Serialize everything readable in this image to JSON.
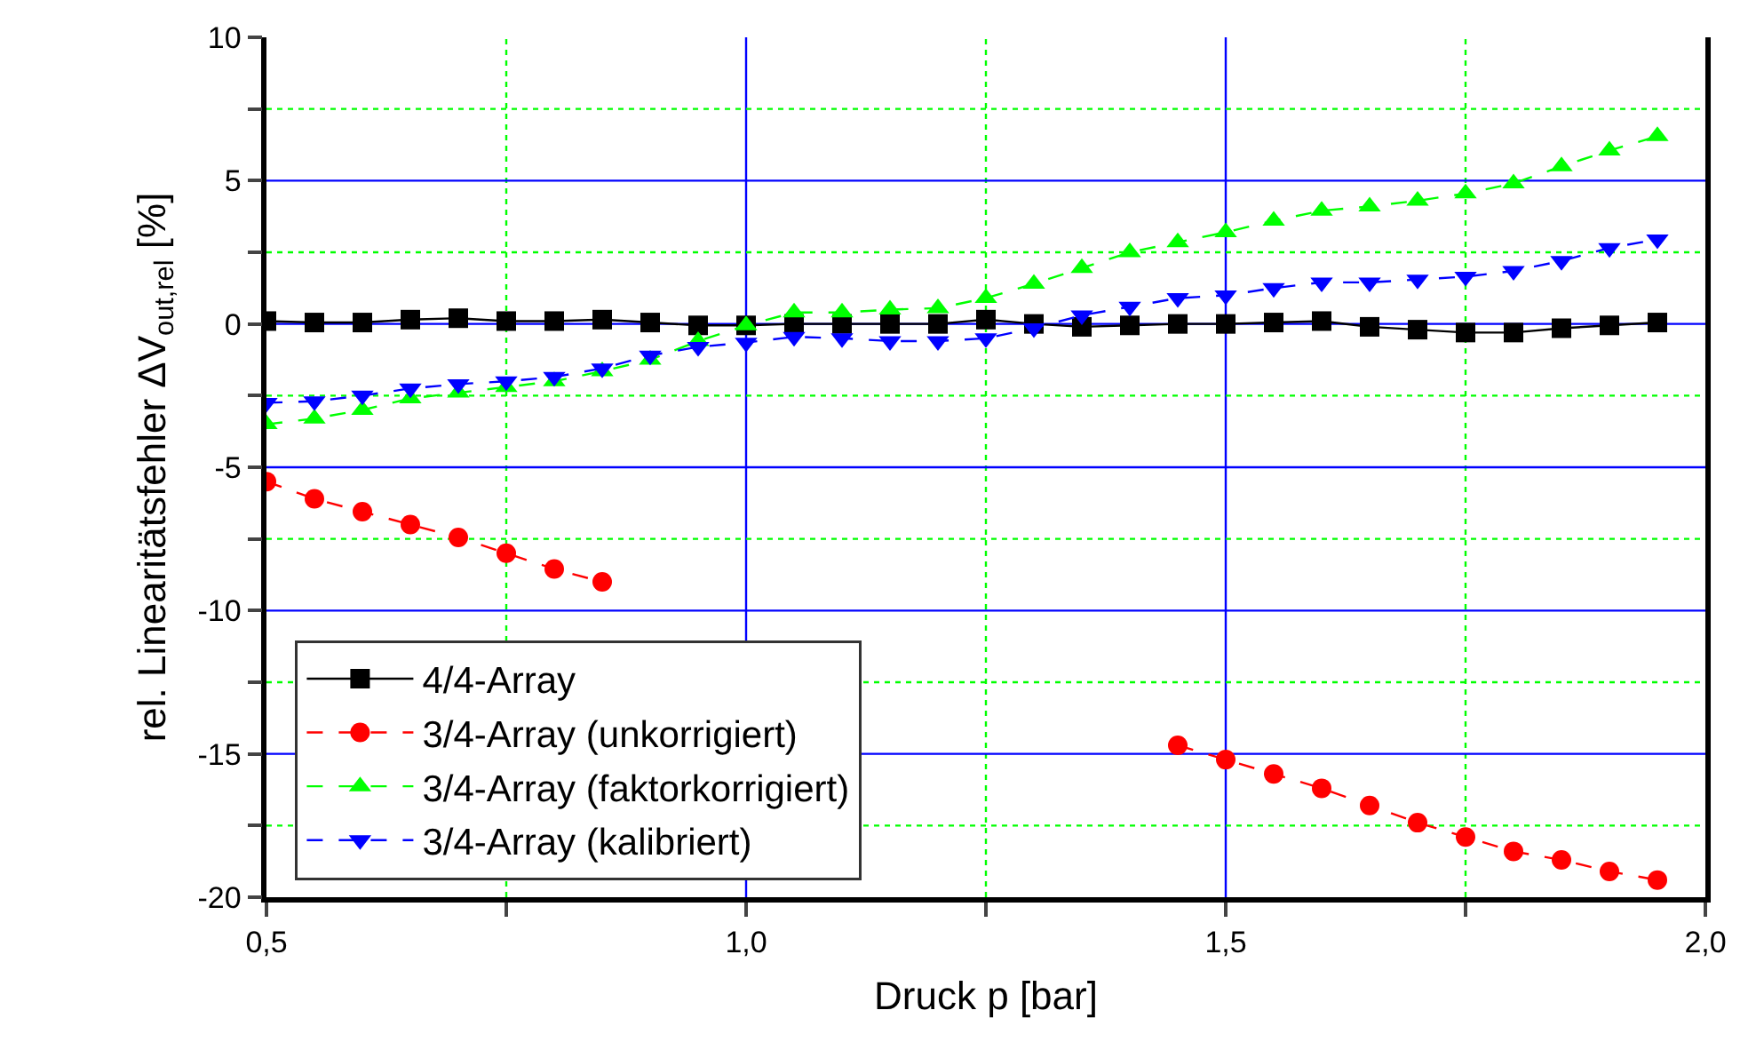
{
  "chart_data": {
    "type": "line",
    "xlabel": "Druck p [bar]",
    "ylabel": "rel. Linearitätsfehler ΔV$_{out,rel}$ [%]",
    "x": [
      0.5,
      0.55,
      0.6,
      0.65,
      0.7,
      0.75,
      0.8,
      0.85,
      0.9,
      0.95,
      1.0,
      1.05,
      1.1,
      1.15,
      1.2,
      1.25,
      1.3,
      1.35,
      1.4,
      1.45,
      1.5,
      1.55,
      1.6,
      1.65,
      1.7,
      1.75,
      1.8,
      1.85,
      1.9,
      1.95
    ],
    "series": [
      {
        "name": "4/4-Array",
        "color": "#000000",
        "marker": "square",
        "line_style": "solid",
        "values": [
          0.1,
          0.05,
          0.05,
          0.15,
          0.2,
          0.1,
          0.1,
          0.15,
          0.05,
          -0.05,
          -0.05,
          0,
          0,
          0,
          0,
          0.15,
          0,
          -0.1,
          -0.05,
          0,
          0,
          0.05,
          0.1,
          -0.1,
          -0.2,
          -0.3,
          -0.3,
          -0.15,
          -0.05,
          0.05
        ]
      },
      {
        "name": "3/4-Array (unkorrigiert)",
        "color": "#ff0000",
        "marker": "circle",
        "line_style": "dashed",
        "values": [
          -5.5,
          -6.1,
          -6.55,
          -7.0,
          -7.45,
          -8.0,
          -8.55,
          -9.0,
          null,
          null,
          null,
          null,
          null,
          null,
          null,
          null,
          null,
          null,
          null,
          -14.7,
          -15.2,
          -15.7,
          -16.2,
          -16.8,
          -17.4,
          -17.9,
          -18.4,
          -18.7,
          -19.1,
          -19.4
        ]
      },
      {
        "name": "3/4-Array (faktorkorrigiert)",
        "color": "#00ff00",
        "marker": "triangle",
        "line_style": "dashed",
        "values": [
          -3.5,
          -3.3,
          -3.0,
          -2.6,
          -2.4,
          -2.2,
          -2.0,
          -1.65,
          -1.25,
          -0.6,
          -0.05,
          0.4,
          0.4,
          0.5,
          0.55,
          0.9,
          1.4,
          1.95,
          2.5,
          2.85,
          3.2,
          3.6,
          3.95,
          4.1,
          4.3,
          4.55,
          4.9,
          5.5,
          6.05,
          6.55
        ]
      },
      {
        "name": "3/4-Array (kalibriert)",
        "color": "#0000ff",
        "marker": "triangle-down",
        "line_style": "dashed",
        "values": [
          -2.75,
          -2.7,
          -2.5,
          -2.25,
          -2.1,
          -2.0,
          -1.85,
          -1.55,
          -1.1,
          -0.8,
          -0.65,
          -0.45,
          -0.5,
          -0.6,
          -0.6,
          -0.5,
          -0.15,
          0.3,
          0.6,
          0.9,
          1.0,
          1.25,
          1.45,
          1.45,
          1.55,
          1.65,
          1.85,
          2.2,
          2.65,
          2.95
        ]
      }
    ],
    "xlim": [
      0.5,
      2.0
    ],
    "xticks": [
      {
        "value": 0.5,
        "label": "0,5"
      },
      {
        "value": 0.75,
        "label": null
      },
      {
        "value": 1.0,
        "label": "1,0"
      },
      {
        "value": 1.25,
        "label": null
      },
      {
        "value": 1.5,
        "label": "1,5"
      },
      {
        "value": 1.75,
        "label": null
      },
      {
        "value": 2.0,
        "label": "2,0"
      }
    ],
    "ylim": [
      -20,
      10
    ],
    "yticks": [
      -20,
      {
        "value": -17.5,
        "label": null
      },
      -15,
      {
        "value": -12.5,
        "label": null
      },
      -10,
      {
        "value": -7.5,
        "label": null
      },
      -5,
      {
        "value": -2.5,
        "label": null
      },
      0,
      {
        "value": 2.5,
        "label": null
      },
      5,
      {
        "value": 7.5,
        "label": null
      },
      10
    ],
    "grid": true,
    "legend": "bottom left"
  }
}
